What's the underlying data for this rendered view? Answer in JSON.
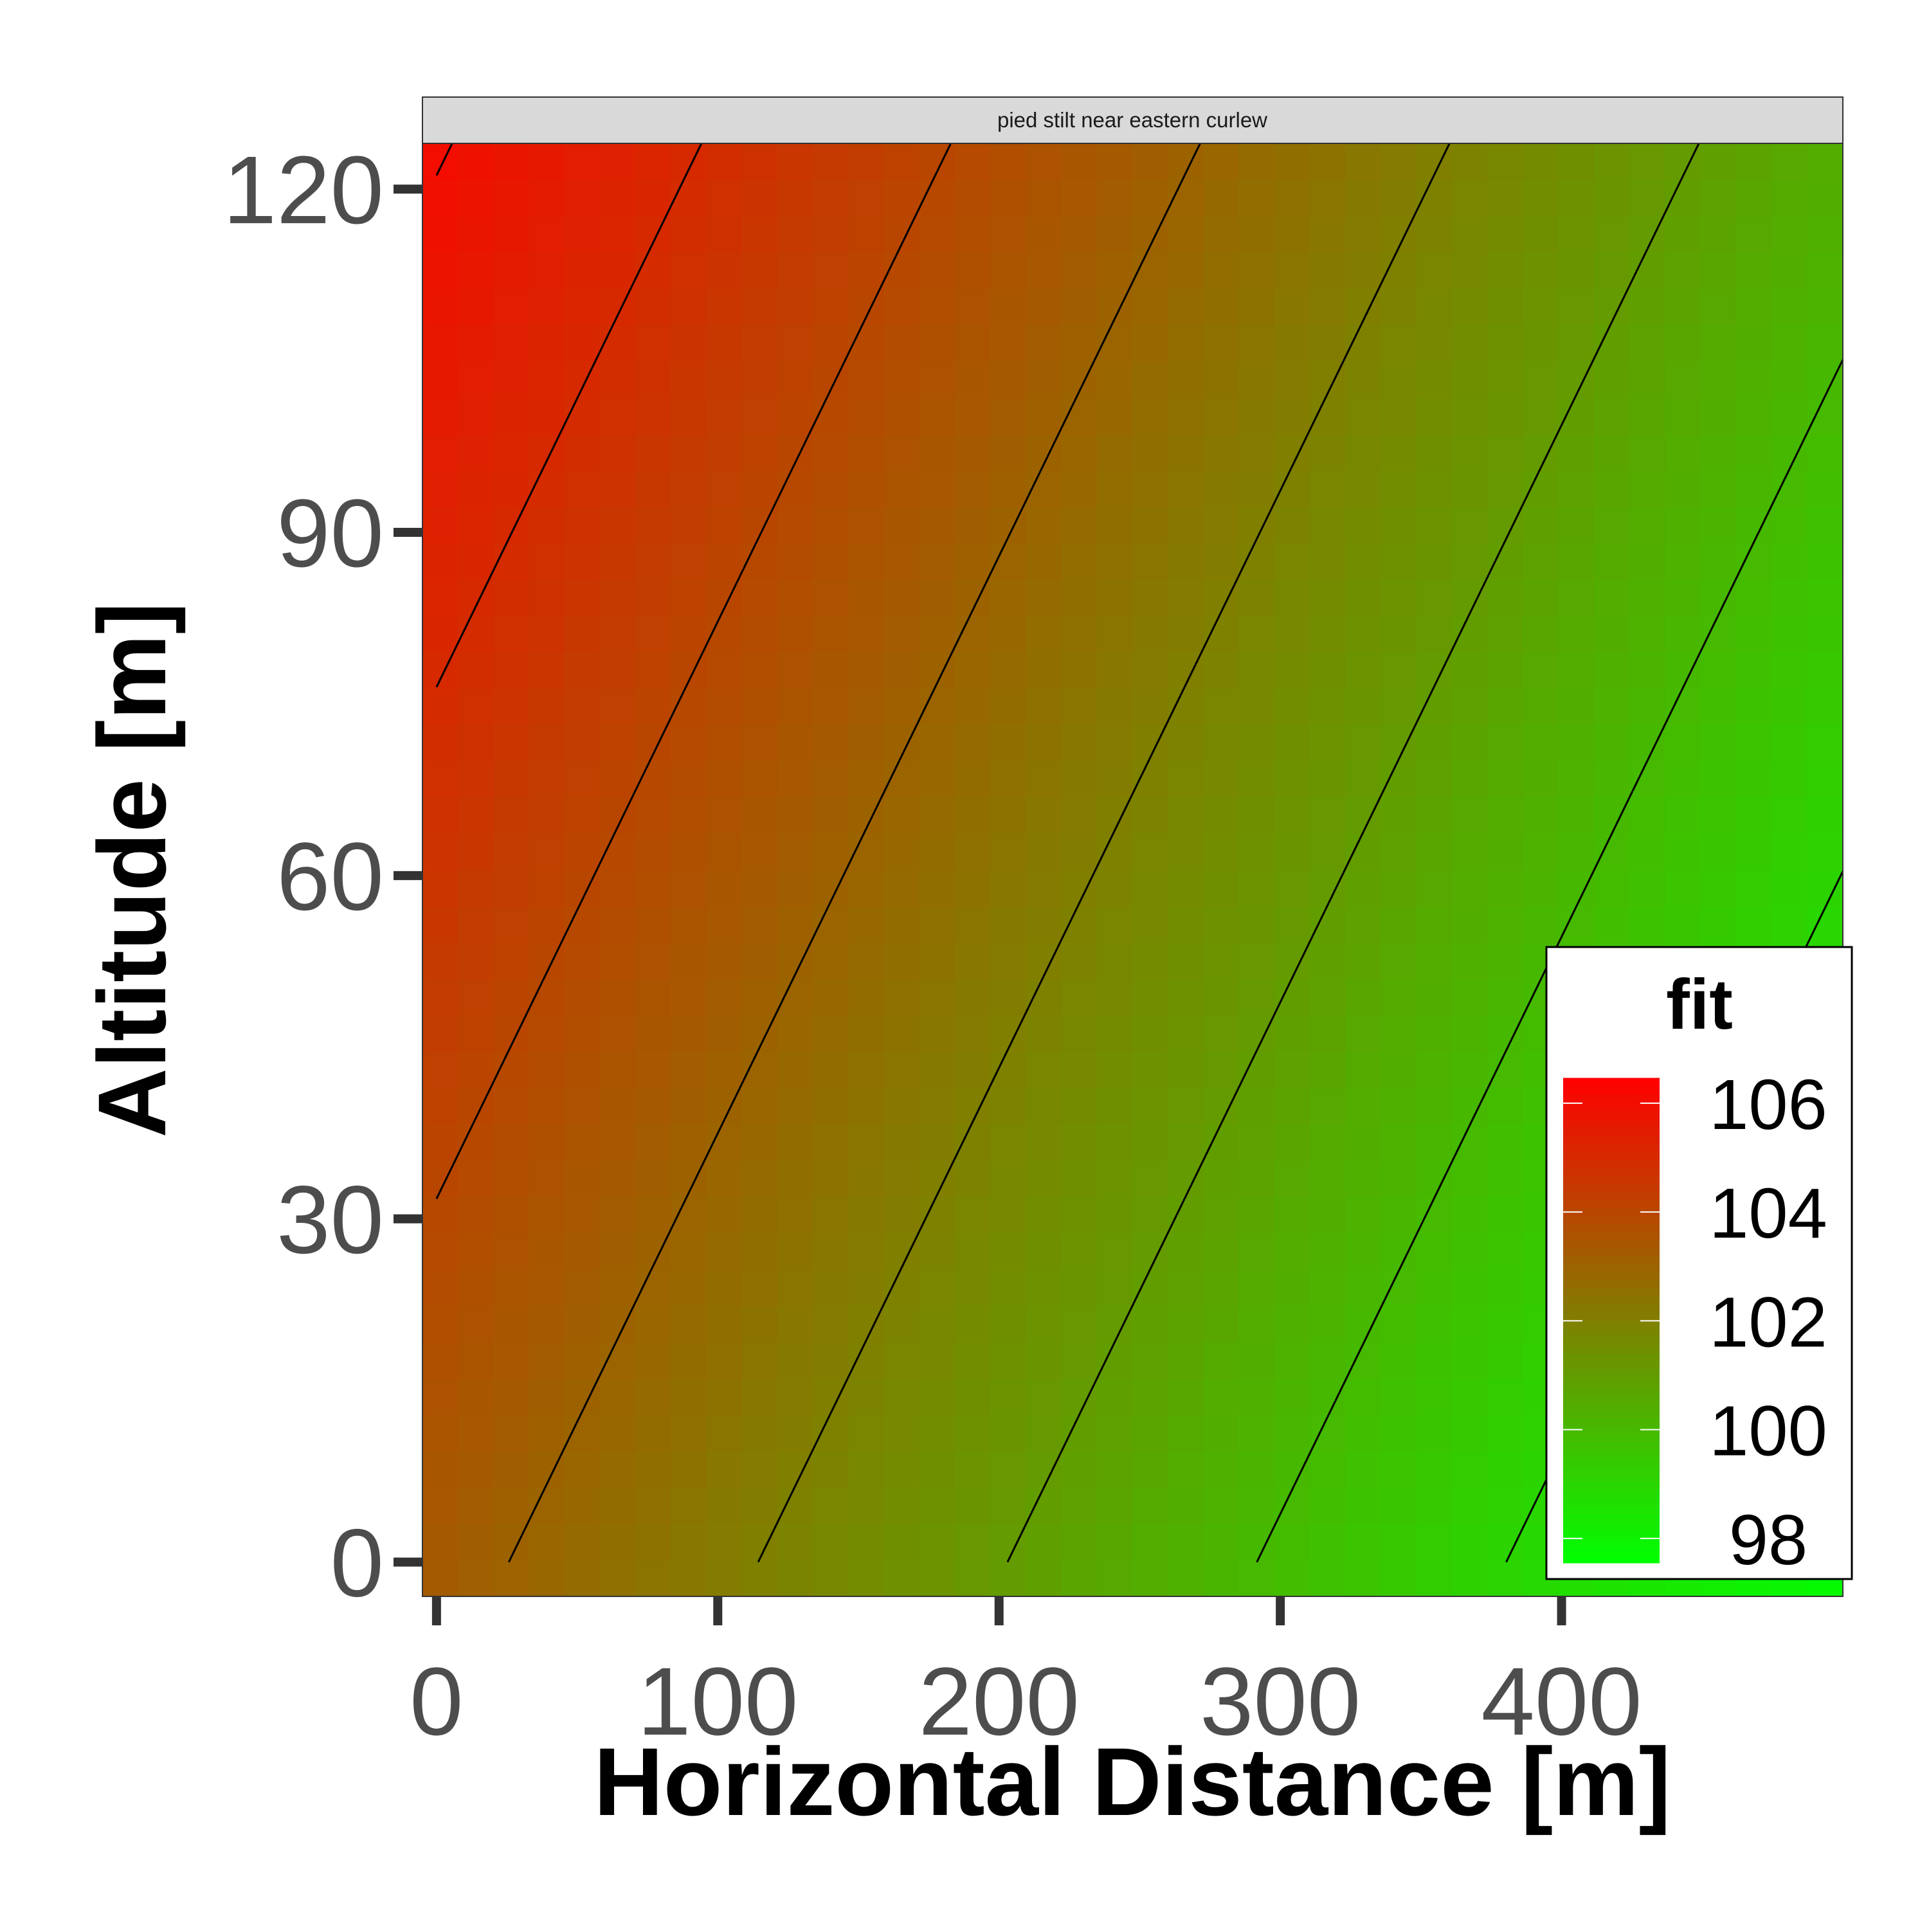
{
  "chart_data": {
    "type": "heatmap",
    "facet_label": "pied stilt near eastern curlew",
    "xlabel": "Horizontal Distance [m]",
    "ylabel": "Altitude [m]",
    "xlim": [
      -5,
      500
    ],
    "ylim": [
      -3,
      124
    ],
    "x_ticks": [
      0,
      100,
      200,
      300,
      400
    ],
    "x_tick_labels": [
      "0",
      "100",
      "200",
      "300",
      "400"
    ],
    "y_ticks": [
      0,
      30,
      60,
      90,
      120
    ],
    "y_tick_labels": [
      "0",
      "30",
      "60",
      "90",
      "120"
    ],
    "grid": false,
    "surface": {
      "description": "planar fit surface: fit = intercept + slope_x * x + slope_y * y",
      "intercept": 103.29,
      "slope_x": -0.01128,
      "slope_y": 0.02236,
      "x_range": [
        0,
        500
      ],
      "y_range": [
        0,
        124
      ]
    },
    "contours": [
      {
        "level": 106
      },
      {
        "level": 105
      },
      {
        "level": 104
      },
      {
        "level": 103
      },
      {
        "level": 102
      },
      {
        "level": 101
      },
      {
        "level": 100
      },
      {
        "level": 99
      },
      {
        "level": 98
      }
    ],
    "legend": {
      "title": "fit",
      "position": "bottom-right inside",
      "range": [
        97.55,
        106.46
      ],
      "breaks": [
        106,
        104,
        102,
        100,
        98
      ],
      "labels": [
        "106",
        "104",
        "102",
        "100",
        "98"
      ],
      "low_color": "#00ff00",
      "high_color": "#ff0000"
    }
  }
}
